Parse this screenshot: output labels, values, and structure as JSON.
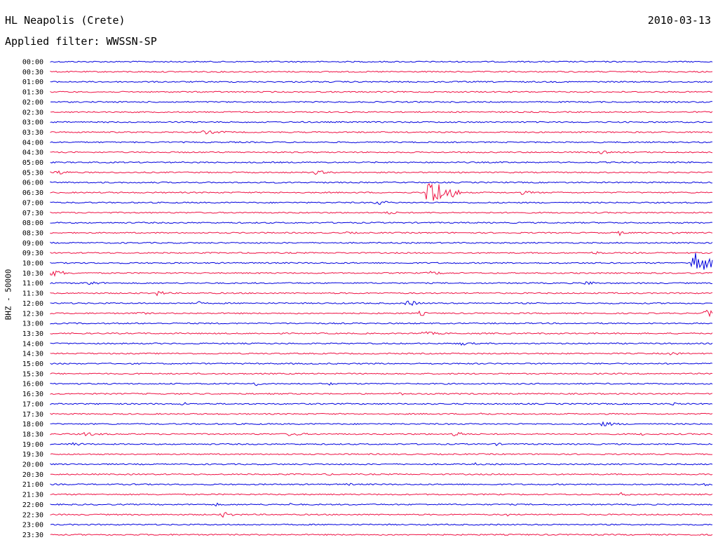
{
  "header": {
    "station": "HL Neapolis (Crete)",
    "date": "2010-03-13",
    "filter": "Applied filter: WWSSN-SP"
  },
  "channel_label": "BHZ - 50000",
  "colors": {
    "a": "#0000dd",
    "b": "#ee1144"
  },
  "chart_data": {
    "type": "line",
    "title": "",
    "ylabel": "BHZ - 50000",
    "xlabel": "",
    "grid": false,
    "rows": [
      "00:00",
      "00:30",
      "01:00",
      "01:30",
      "02:00",
      "02:30",
      "03:00",
      "03:30",
      "04:00",
      "04:30",
      "05:00",
      "05:30",
      "06:00",
      "06:30",
      "07:00",
      "07:30",
      "08:00",
      "08:30",
      "09:00",
      "09:30",
      "10:00",
      "10:30",
      "11:00",
      "11:30",
      "12:00",
      "12:30",
      "13:00",
      "13:30",
      "14:00",
      "14:30",
      "15:00",
      "15:30",
      "16:00",
      "16:30",
      "17:00",
      "17:30",
      "18:00",
      "18:30",
      "19:00",
      "19:30",
      "20:00",
      "20:30",
      "21:00",
      "21:30",
      "22:00",
      "22:30",
      "23:00",
      "23:30"
    ],
    "events": [
      {
        "row": "03:30",
        "at": 0.23,
        "amp": 3,
        "dur": 0.07
      },
      {
        "row": "04:30",
        "at": 0.83,
        "amp": 4,
        "dur": 0.02
      },
      {
        "row": "05:30",
        "at": 0.01,
        "amp": 4,
        "dur": 0.03
      },
      {
        "row": "05:30",
        "at": 0.4,
        "amp": 3,
        "dur": 0.05
      },
      {
        "row": "06:30",
        "at": 0.57,
        "amp": 26,
        "dur": 0.05
      },
      {
        "row": "06:30",
        "at": 0.71,
        "amp": 3,
        "dur": 0.05
      },
      {
        "row": "07:00",
        "at": 0.49,
        "amp": 4,
        "dur": 0.04
      },
      {
        "row": "07:30",
        "at": 0.51,
        "amp": 3,
        "dur": 0.03
      },
      {
        "row": "08:30",
        "at": 0.45,
        "amp": 3,
        "dur": 0.02
      },
      {
        "row": "08:30",
        "at": 0.86,
        "amp": 4,
        "dur": 0.02
      },
      {
        "row": "08:30",
        "at": 0.94,
        "amp": 3,
        "dur": 0.02
      },
      {
        "row": "09:30",
        "at": 0.82,
        "amp": 3,
        "dur": 0.03
      },
      {
        "row": "10:00",
        "at": 0.97,
        "amp": 22,
        "dur": 0.04
      },
      {
        "row": "10:30",
        "at": 0.0,
        "amp": 6,
        "dur": 0.04
      },
      {
        "row": "10:30",
        "at": 0.57,
        "amp": 3,
        "dur": 0.06
      },
      {
        "row": "11:00",
        "at": 0.05,
        "amp": 4,
        "dur": 0.05
      },
      {
        "row": "11:00",
        "at": 0.81,
        "amp": 5,
        "dur": 0.02
      },
      {
        "row": "11:30",
        "at": 0.16,
        "amp": 4,
        "dur": 0.03
      },
      {
        "row": "12:00",
        "at": 0.22,
        "amp": 6,
        "dur": 0.01
      },
      {
        "row": "12:00",
        "at": 0.54,
        "amp": 5,
        "dur": 0.03
      },
      {
        "row": "12:30",
        "at": 0.13,
        "amp": 3,
        "dur": 0.03
      },
      {
        "row": "12:30",
        "at": 0.56,
        "amp": 6,
        "dur": 0.01
      },
      {
        "row": "12:30",
        "at": 0.99,
        "amp": 7,
        "dur": 0.02
      },
      {
        "row": "13:30",
        "at": 0.56,
        "amp": 3,
        "dur": 0.06
      },
      {
        "row": "14:00",
        "at": 0.62,
        "amp": 3,
        "dur": 0.04
      },
      {
        "row": "14:30",
        "at": 0.94,
        "amp": 4,
        "dur": 0.02
      },
      {
        "row": "16:00",
        "at": 0.31,
        "amp": 5,
        "dur": 0.01
      },
      {
        "row": "16:00",
        "at": 0.42,
        "amp": 4,
        "dur": 0.01
      },
      {
        "row": "16:30",
        "at": 0.53,
        "amp": 4,
        "dur": 0.01
      },
      {
        "row": "17:00",
        "at": 0.2,
        "amp": 4,
        "dur": 0.01
      },
      {
        "row": "17:00",
        "at": 0.94,
        "amp": 4,
        "dur": 0.01
      },
      {
        "row": "17:30",
        "at": 0.65,
        "amp": 3,
        "dur": 0.03
      },
      {
        "row": "18:00",
        "at": 0.83,
        "amp": 4,
        "dur": 0.05
      },
      {
        "row": "18:30",
        "at": 0.05,
        "amp": 3,
        "dur": 0.06
      },
      {
        "row": "18:30",
        "at": 0.36,
        "amp": 3,
        "dur": 0.05
      },
      {
        "row": "18:30",
        "at": 0.61,
        "amp": 7,
        "dur": 0.02
      },
      {
        "row": "18:30",
        "at": 0.89,
        "amp": 4,
        "dur": 0.01
      },
      {
        "row": "19:00",
        "at": 0.03,
        "amp": 3,
        "dur": 0.05
      },
      {
        "row": "19:00",
        "at": 0.67,
        "amp": 3,
        "dur": 0.02
      },
      {
        "row": "20:00",
        "at": 0.64,
        "amp": 3,
        "dur": 0.01
      },
      {
        "row": "20:30",
        "at": 0.42,
        "amp": 3,
        "dur": 0.01
      },
      {
        "row": "21:00",
        "at": 0.13,
        "amp": 3,
        "dur": 0.01
      },
      {
        "row": "21:00",
        "at": 0.45,
        "amp": 3,
        "dur": 0.01
      },
      {
        "row": "21:00",
        "at": 0.99,
        "amp": 4,
        "dur": 0.02
      },
      {
        "row": "21:30",
        "at": 0.86,
        "amp": 3,
        "dur": 0.03
      },
      {
        "row": "22:00",
        "at": 0.25,
        "amp": 3,
        "dur": 0.01
      },
      {
        "row": "22:00",
        "at": 0.36,
        "amp": 3,
        "dur": 0.01
      },
      {
        "row": "22:30",
        "at": 0.26,
        "amp": 4,
        "dur": 0.04
      },
      {
        "row": "22:30",
        "at": 0.69,
        "amp": 3,
        "dur": 0.01
      }
    ]
  }
}
